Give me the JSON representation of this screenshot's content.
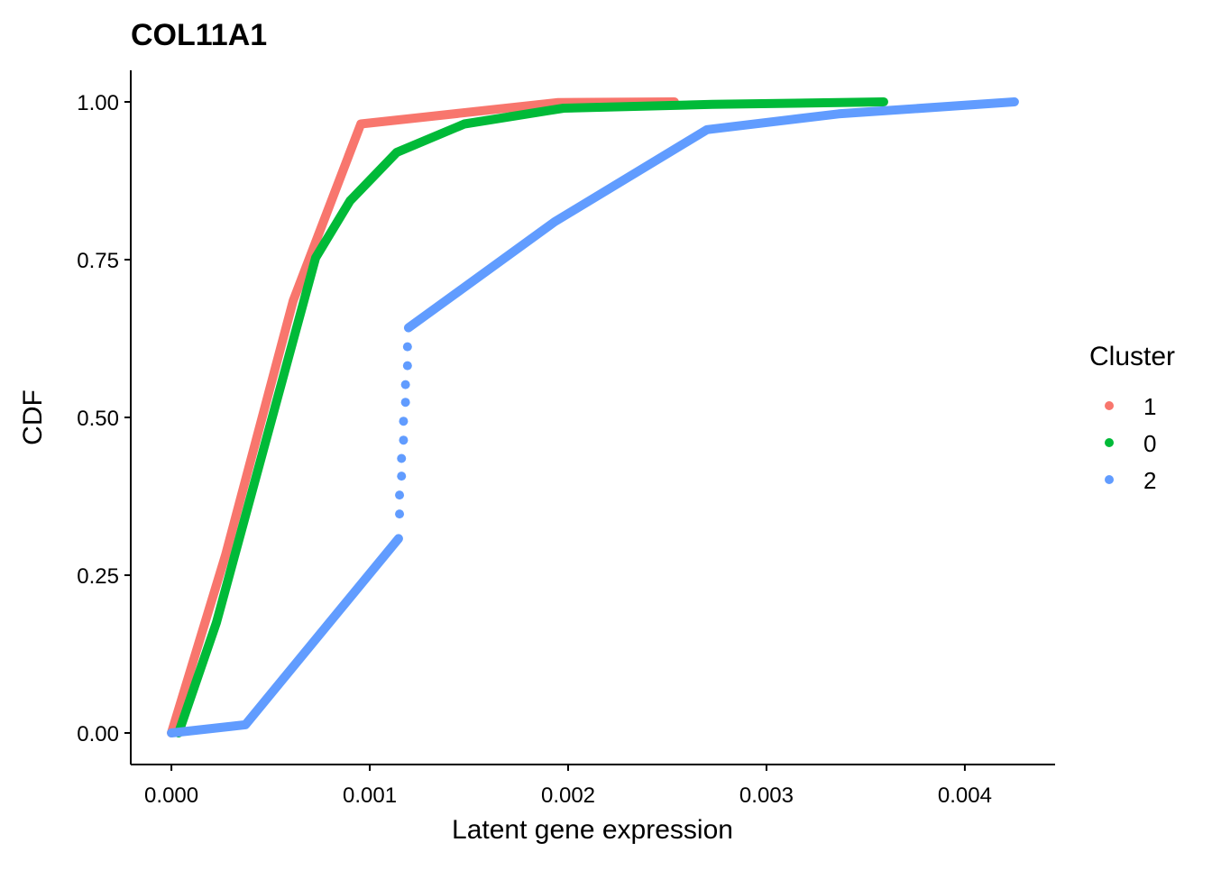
{
  "chart_data": {
    "type": "line",
    "title": "COL11A1",
    "x_label": "Latent gene expression",
    "y_label": "CDF",
    "legend_title": "Cluster",
    "legend_position": "right",
    "grid": false,
    "xlim": [
      -0.000205,
      0.004455
    ],
    "ylim": [
      -0.05,
      1.05
    ],
    "xticks": [
      {
        "value": 0,
        "label": "0.000"
      },
      {
        "value": 0.001,
        "label": "0.001"
      },
      {
        "value": 0.002,
        "label": "0.002"
      },
      {
        "value": 0.003,
        "label": "0.003"
      },
      {
        "value": 0.004,
        "label": "0.004"
      }
    ],
    "yticks": [
      {
        "value": 0,
        "label": "0.00"
      },
      0.25,
      {
        "value": 0.5,
        "label": "0.50"
      },
      0.75,
      {
        "value": 1,
        "label": "1.00"
      }
    ],
    "series": [
      {
        "name": "1",
        "color": "#F8766D",
        "x": [
          0,
          0.000273,
          0.000614,
          0.000955,
          0.00195,
          0.002536
        ],
        "values": [
          0,
          0.282,
          0.685,
          0.965,
          0.999,
          1.0
        ]
      },
      {
        "name": "0",
        "color": "#00BA38",
        "x": [
          3.6e-05,
          0.000227,
          0.000727,
          0.0009,
          0.001136,
          0.001477,
          0.001977,
          0.002727,
          0.003591
        ],
        "values": [
          0,
          0.175,
          0.753,
          0.843,
          0.92,
          0.965,
          0.99,
          0.996,
          1.0
        ]
      },
      {
        "name": "2",
        "color": "#619CFF",
        "x": [
          0,
          0.000373,
          0.001145,
          null,
          0.00115,
          null,
          0.00115,
          null,
          0.00116,
          null,
          0.00116,
          null,
          0.00117,
          null,
          0.00117,
          null,
          0.00118,
          null,
          0.00118,
          null,
          0.00119,
          null,
          0.00119,
          null,
          0.001195,
          0.001932,
          0.0027,
          0.003364,
          0.00425
        ],
        "values": [
          0,
          0.013,
          0.308,
          null,
          0.347,
          null,
          0.377,
          null,
          0.407,
          null,
          0.435,
          null,
          0.464,
          null,
          0.494,
          null,
          0.524,
          null,
          0.552,
          null,
          0.582,
          null,
          0.612,
          null,
          0.642,
          0.81,
          0.956,
          0.981,
          1.0
        ]
      }
    ]
  }
}
